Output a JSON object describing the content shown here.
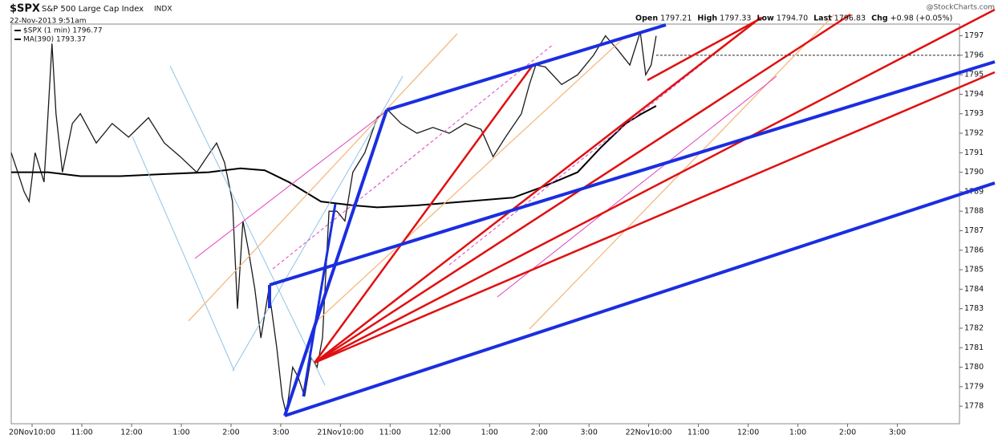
{
  "chart_data": {
    "type": "line",
    "title": "$SPX",
    "subtitle": "S&P 500 Large Cap Index",
    "exchange": "INDX",
    "date": "22-Nov-2013 9:51am",
    "watermark": "@StockCharts.com",
    "quote": [
      {
        "label": "Open",
        "value": "1797.21"
      },
      {
        "label": "High",
        "value": "1797.33"
      },
      {
        "label": "Low",
        "value": "1794.70"
      },
      {
        "label": "Last",
        "value": "1796.83"
      },
      {
        "label": "Chg",
        "value": "+0.98 (+0.05%)"
      }
    ],
    "series": [
      {
        "name": "$SPX (1 min) 1796.77",
        "color": "#1a1a1a",
        "x": [
          -0.42,
          -0.29,
          -0.16,
          -0.06,
          0.06,
          0.24,
          0.32,
          0.4,
          0.48,
          0.61,
          0.81,
          0.97,
          1.29,
          1.61,
          1.94,
          2.34,
          2.66,
          2.98,
          3.31,
          3.52,
          3.71,
          3.87,
          4.03,
          4.13,
          4.24,
          4.35,
          4.48,
          4.6,
          4.76,
          4.92,
          5.03,
          5.11,
          5.24,
          5.35,
          5.48,
          5.61,
          5.73,
          5.84,
          5.97,
          6.13,
          6.29,
          6.45,
          6.69,
          6.94,
          7.15,
          7.42,
          7.74,
          8.06,
          8.39,
          8.71,
          9.03,
          9.27,
          9.52,
          9.84,
          10,
          10.13,
          10.32,
          10.65,
          10.97,
          11.29,
          11.53,
          11.77,
          12.02,
          12.23,
          12.34,
          12.45,
          12.55
        ],
        "values": [
          1791,
          1790,
          1789,
          1788.5,
          1791,
          1789.5,
          1793,
          1796.6,
          1793,
          1790,
          1792.5,
          1793,
          1791.5,
          1792.5,
          1791.8,
          1792.8,
          1791.5,
          1790.8,
          1790,
          1790.8,
          1791.5,
          1790.5,
          1788.5,
          1783,
          1787.5,
          1786,
          1784,
          1781.5,
          1784,
          1781,
          1778.5,
          1777.6,
          1780,
          1779.5,
          1778.5,
          1780.5,
          1780,
          1781.5,
          1788,
          1788,
          1787.5,
          1790,
          1791,
          1792.8,
          1793.2,
          1792.5,
          1792,
          1792.3,
          1792,
          1792.5,
          1792.2,
          1790.8,
          1791.8,
          1793,
          1794.5,
          1795.5,
          1795.4,
          1794.5,
          1795,
          1796,
          1797,
          1796.3,
          1795.5,
          1797.2,
          1795,
          1795.5,
          1797
        ]
      },
      {
        "name": "MA(390) 1793.37",
        "color": "#000000",
        "x": [
          -0.42,
          0.32,
          0.97,
          1.77,
          2.58,
          3.55,
          4.19,
          4.68,
          5.16,
          5.81,
          6.45,
          6.94,
          7.74,
          8.71,
          9.68,
          10.32,
          10.97,
          11.45,
          11.94,
          12.26,
          12.55
        ],
        "values": [
          1790,
          1790,
          1789.8,
          1789.8,
          1789.9,
          1790,
          1790.2,
          1790.1,
          1789.5,
          1788.5,
          1788.3,
          1788.2,
          1788.3,
          1788.5,
          1788.7,
          1789.3,
          1790,
          1791.3,
          1792.5,
          1793,
          1793.4
        ]
      }
    ],
    "reference_line": 1796,
    "xlim": [
      -0.42,
      18.65
    ],
    "xticks": [
      {
        "value": 0,
        "label": "20Nov10:00"
      },
      {
        "value": 1,
        "label": "11:00"
      },
      {
        "value": 2,
        "label": "12:00"
      },
      {
        "value": 3,
        "label": "1:00"
      },
      {
        "value": 4,
        "label": "2:00"
      },
      {
        "value": 5,
        "label": "3:00"
      },
      {
        "value": 6.2,
        "label": "21Nov10:00"
      },
      {
        "value": 7.2,
        "label": "11:00"
      },
      {
        "value": 8.2,
        "label": "12:00"
      },
      {
        "value": 9.2,
        "label": "1:00"
      },
      {
        "value": 10.2,
        "label": "2:00"
      },
      {
        "value": 11.2,
        "label": "3:00"
      },
      {
        "value": 12.4,
        "label": "22Nov10:00"
      },
      {
        "value": 13.4,
        "label": "11:00"
      },
      {
        "value": 14.4,
        "label": "12:00"
      },
      {
        "value": 15.4,
        "label": "1:00"
      },
      {
        "value": 16.4,
        "label": "2:00"
      },
      {
        "value": 17.4,
        "label": "3:00"
      }
    ],
    "ylim": [
      1777.1,
      1797.6
    ],
    "yticks": [
      1778,
      1779,
      1780,
      1781,
      1782,
      1783,
      1784,
      1785,
      1786,
      1787,
      1788,
      1789,
      1790,
      1791,
      1792,
      1793,
      1794,
      1795,
      1796,
      1797
    ]
  }
}
